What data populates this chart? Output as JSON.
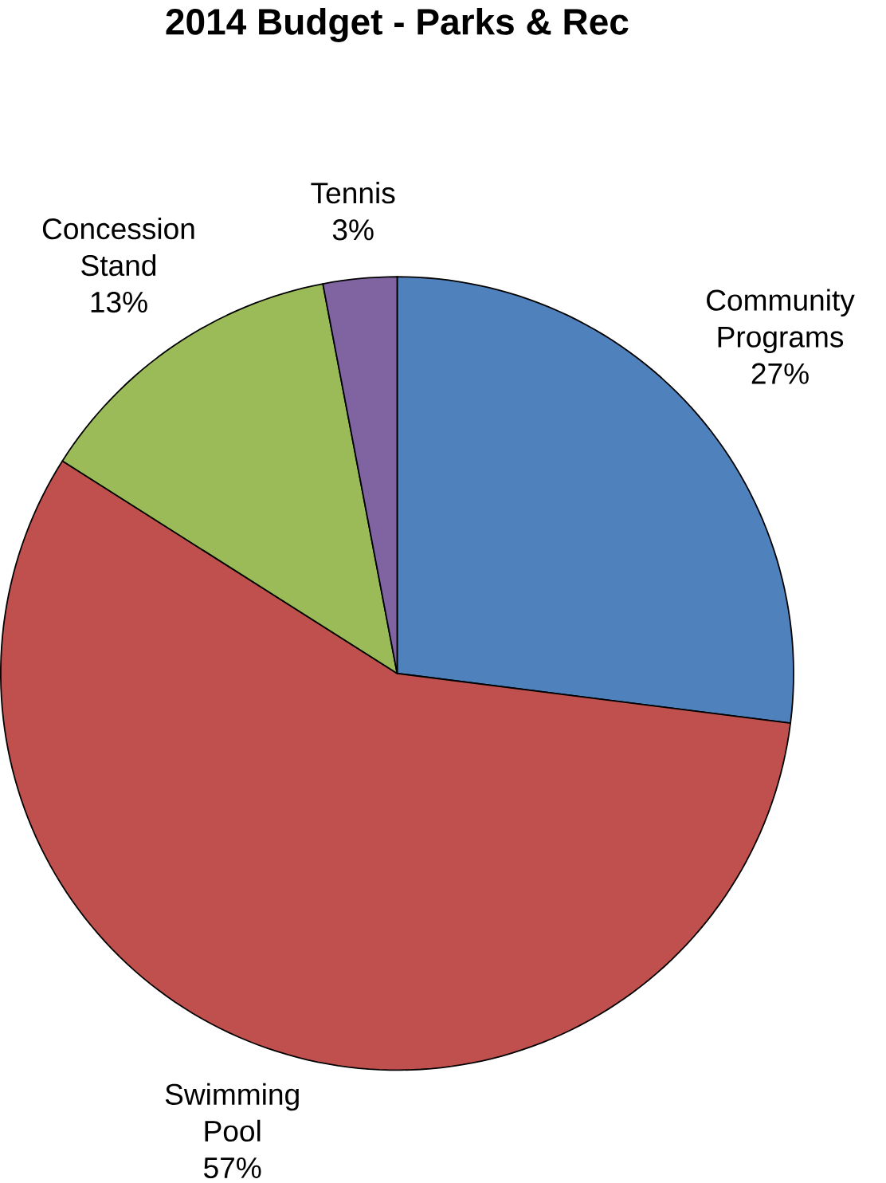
{
  "chart_data": {
    "type": "pie",
    "title": "2014 Budget - Parks & Rec",
    "categories": [
      "Community Programs",
      "Swimming Pool",
      "Concession Stand",
      "Tennis"
    ],
    "values": [
      27,
      57,
      13,
      3
    ],
    "value_labels": [
      "27%",
      "57%",
      "13%",
      "3%"
    ],
    "colors": [
      "#4f81bd",
      "#c0504d",
      "#9bbb59",
      "#8064a2"
    ]
  }
}
